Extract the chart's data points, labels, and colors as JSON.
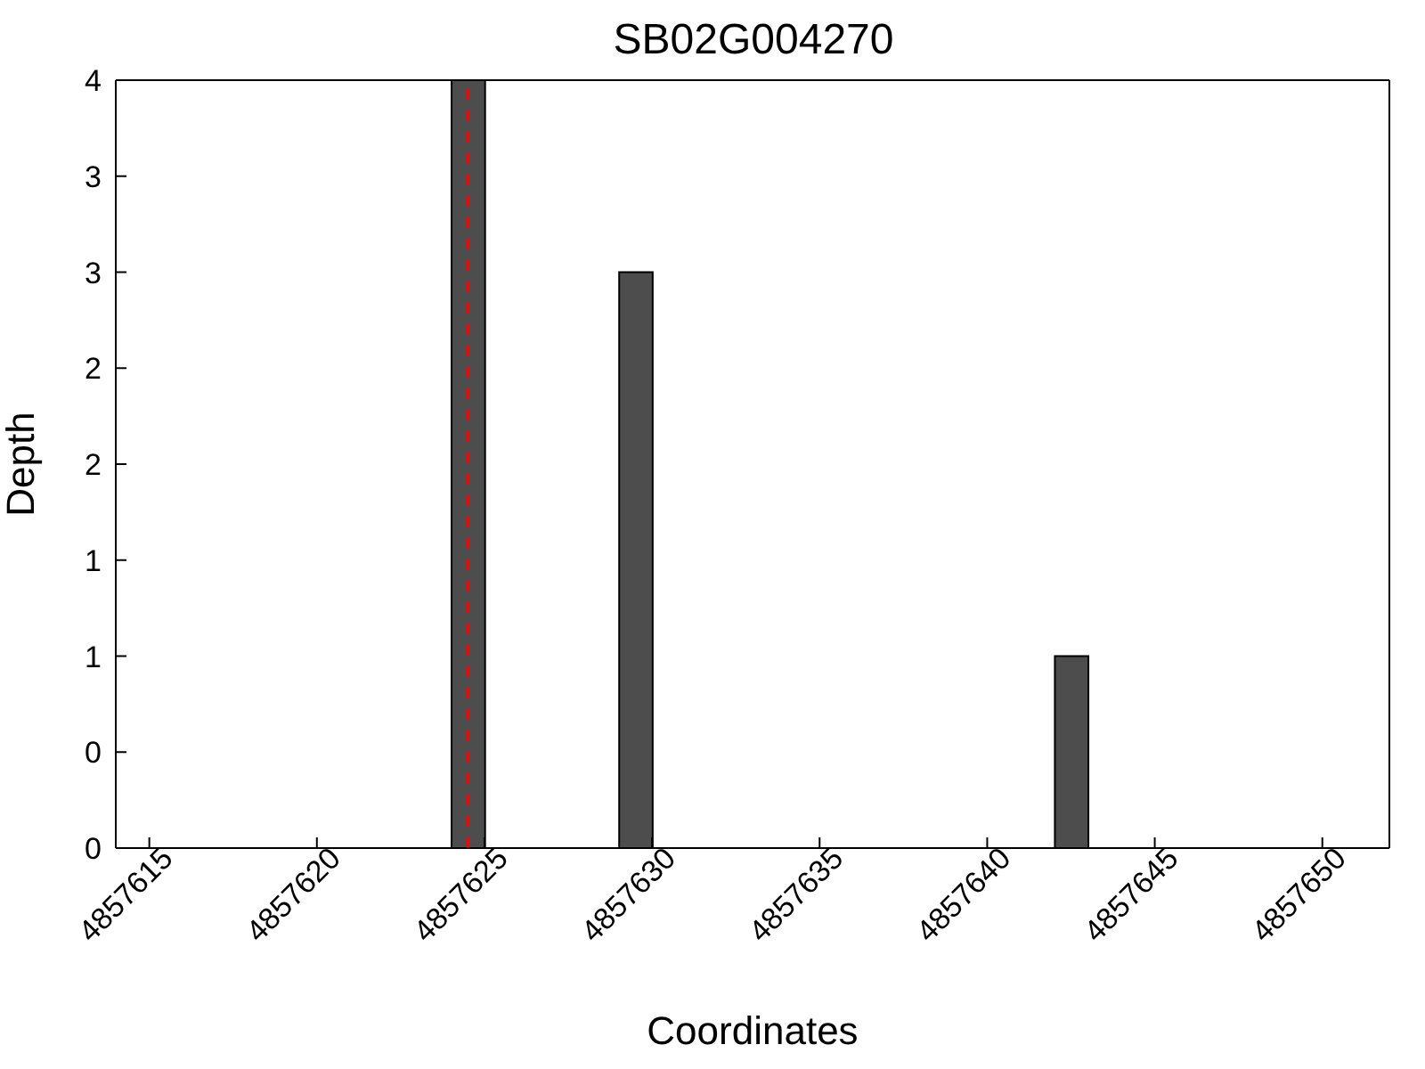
{
  "chart_data": {
    "type": "bar",
    "title": "SB02G004270",
    "xlabel": "Coordinates",
    "ylabel": "Depth",
    "x": [
      4857624.5,
      4857629.5,
      4857642.5
    ],
    "values": [
      4,
      3,
      1
    ],
    "color": "#4d4d4d",
    "xlim": [
      4857614,
      4857652
    ],
    "xticks": [
      4857615,
      4857620,
      4857625,
      4857630,
      4857635,
      4857640,
      4857645,
      4857650
    ],
    "ylim": [
      0,
      4
    ],
    "yticks": [
      0,
      {
        "value": 0.5,
        "label": "0"
      },
      1,
      {
        "value": 1.5,
        "label": "1"
      },
      2,
      {
        "value": 2.5,
        "label": "2"
      },
      3,
      {
        "value": 3.5,
        "label": "3"
      },
      4
    ],
    "ref_lines": [
      {
        "axis": "x",
        "value": 4857624.5,
        "color": "#ff0000",
        "line_style": "dashed"
      }
    ]
  }
}
